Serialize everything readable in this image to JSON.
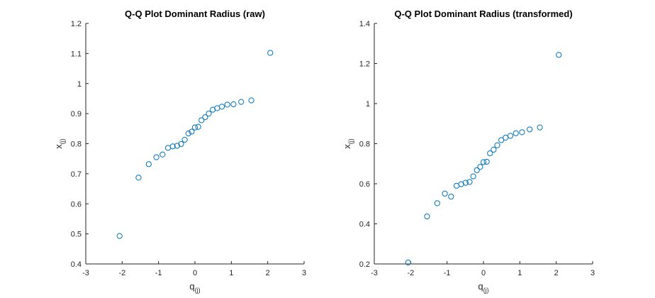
{
  "chart_data": [
    {
      "type": "scatter",
      "title": "Q-Q Plot Dominant Radius (raw)",
      "xlabel": {
        "base": "q",
        "sub": "(j)"
      },
      "ylabel": {
        "base": "x",
        "sub": "(j)"
      },
      "xlim": [
        -3,
        3
      ],
      "ylim": [
        0.4,
        1.2
      ],
      "xticks": [
        -3,
        -2,
        -1,
        0,
        1,
        2,
        3
      ],
      "yticks": [
        0.4,
        0.5,
        0.6,
        0.7,
        0.8,
        0.9,
        1,
        1.1,
        1.2
      ],
      "grid": false,
      "marker_color": "#0072BD",
      "x": [
        -2.07,
        -1.55,
        -1.27,
        -1.06,
        -0.89,
        -0.74,
        -0.61,
        -0.49,
        -0.38,
        -0.28,
        -0.18,
        -0.09,
        0.0,
        0.09,
        0.18,
        0.28,
        0.38,
        0.49,
        0.61,
        0.74,
        0.89,
        1.06,
        1.27,
        1.55,
        2.07
      ],
      "y": [
        0.493,
        0.687,
        0.732,
        0.755,
        0.764,
        0.786,
        0.791,
        0.793,
        0.799,
        0.813,
        0.834,
        0.84,
        0.854,
        0.856,
        0.878,
        0.888,
        0.9,
        0.913,
        0.918,
        0.923,
        0.93,
        0.931,
        0.939,
        0.944,
        1.102
      ]
    },
    {
      "type": "scatter",
      "title": "Q-Q Plot Dominant Radius (transformed)",
      "xlabel": {
        "base": "q",
        "sub": "(j)"
      },
      "ylabel": {
        "base": "x",
        "sub": "(j)"
      },
      "xlim": [
        -3,
        3
      ],
      "ylim": [
        0.2,
        1.4
      ],
      "xticks": [
        -3,
        -2,
        -1,
        0,
        1,
        2,
        3
      ],
      "yticks": [
        0.2,
        0.4,
        0.6,
        0.8,
        1,
        1.2,
        1.4
      ],
      "grid": false,
      "marker_color": "#0072BD",
      "x": [
        -2.07,
        -1.55,
        -1.27,
        -1.06,
        -0.89,
        -0.74,
        -0.61,
        -0.49,
        -0.38,
        -0.28,
        -0.18,
        -0.09,
        0.0,
        0.09,
        0.18,
        0.28,
        0.38,
        0.49,
        0.61,
        0.74,
        0.89,
        1.06,
        1.27,
        1.55,
        2.07
      ],
      "y": [
        0.207,
        0.437,
        0.503,
        0.551,
        0.536,
        0.59,
        0.598,
        0.605,
        0.609,
        0.637,
        0.668,
        0.684,
        0.708,
        0.71,
        0.752,
        0.77,
        0.792,
        0.818,
        0.83,
        0.839,
        0.852,
        0.857,
        0.871,
        0.881,
        1.243
      ]
    }
  ]
}
